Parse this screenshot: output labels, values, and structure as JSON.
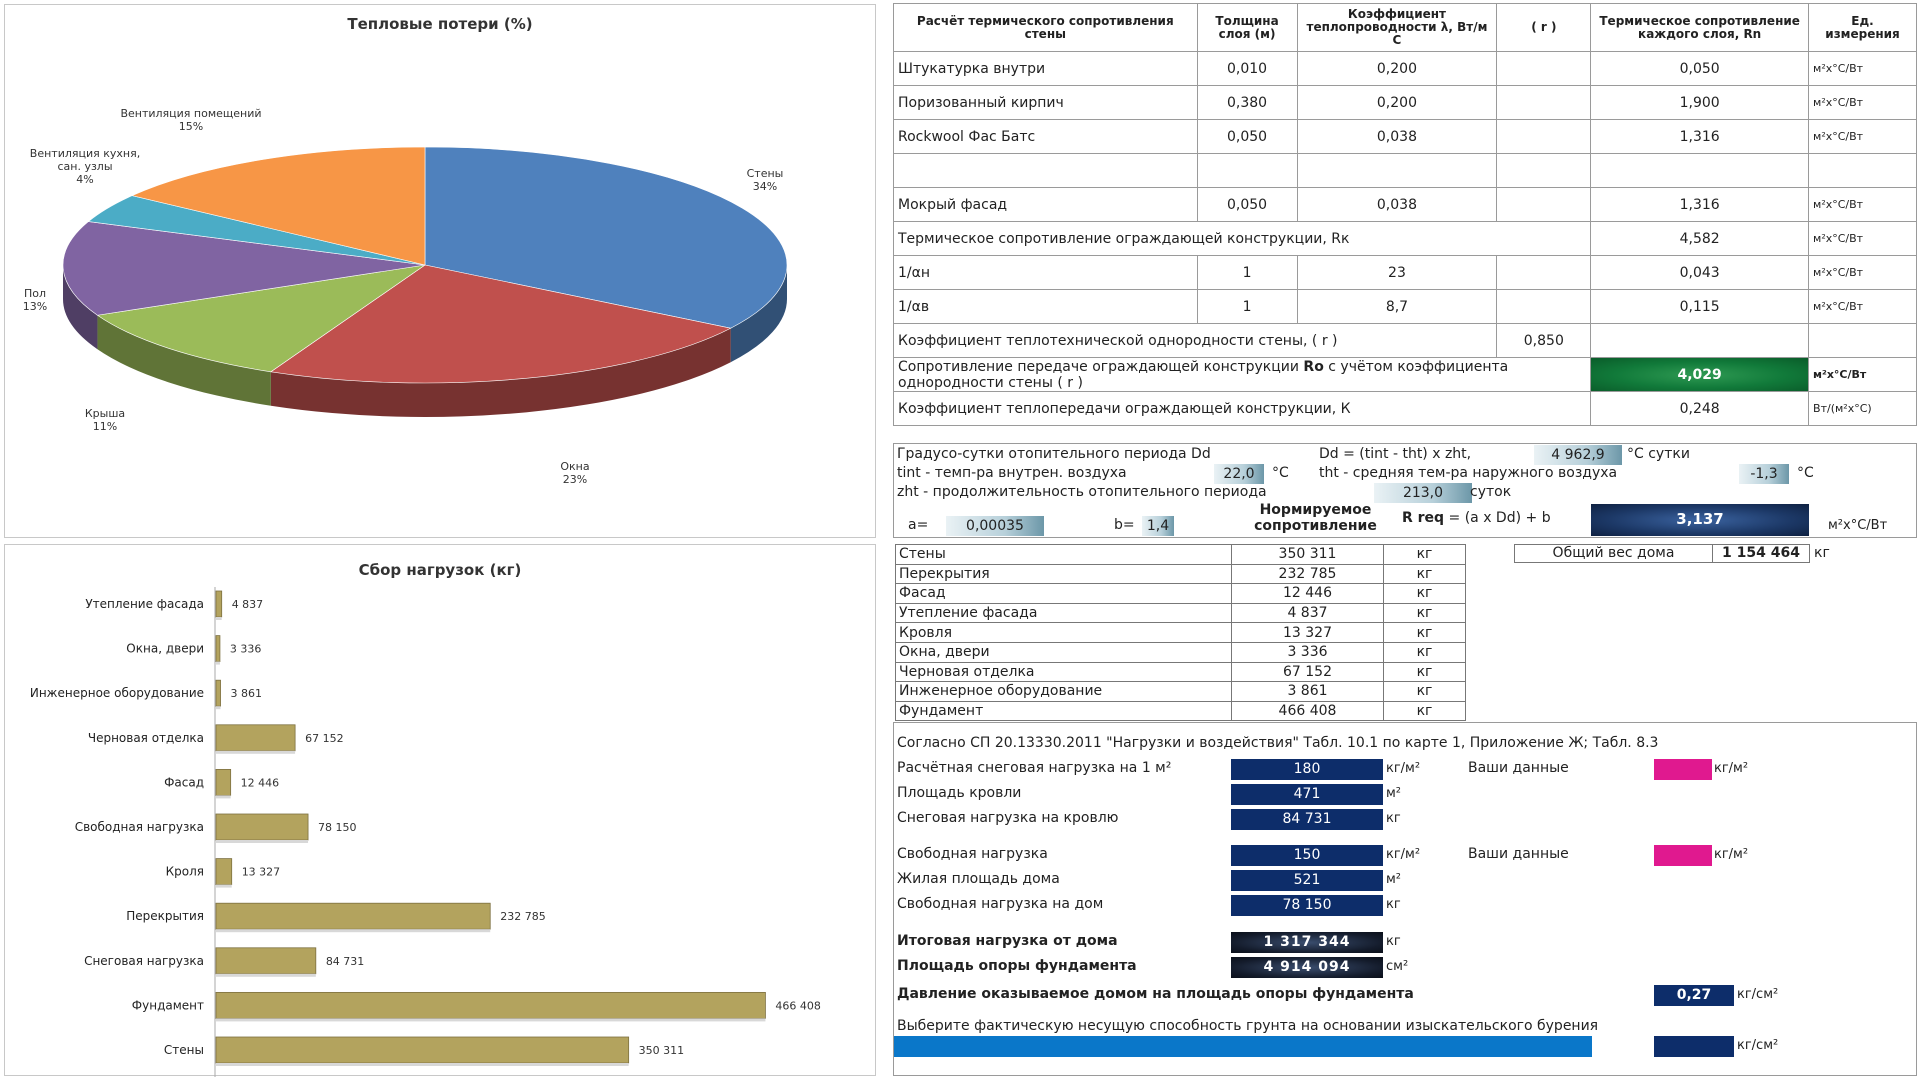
{
  "pie": {
    "title": "Тепловые потери (%)",
    "slices": [
      {
        "label": "Стены",
        "value": 34,
        "pct": "34%",
        "color": "#4f81bd"
      },
      {
        "label": "Окна",
        "value": 23,
        "pct": "23%",
        "color": "#c0504d"
      },
      {
        "label": "Крыша",
        "value": 11,
        "pct": "11%",
        "color": "#9bbb59"
      },
      {
        "label": "Пол",
        "value": 13,
        "pct": "13%",
        "color": "#8064a2"
      },
      {
        "label": "Вентиляция кухня, сан. узлы",
        "label_lines": [
          "Вентиляция кухня,",
          "сан. узлы"
        ],
        "value": 4,
        "pct": "4%",
        "color": "#4bacc6"
      },
      {
        "label": "Вентиляция помещений",
        "value": 15,
        "pct": "15%",
        "color": "#f79646"
      }
    ]
  },
  "chart_data": [
    {
      "type": "pie",
      "title": "Тепловые потери (%)",
      "categories": [
        "Стены",
        "Окна",
        "Крыша",
        "Пол",
        "Вентиляция кухня, сан. узлы",
        "Вентиляция помещений"
      ],
      "values": [
        34,
        23,
        11,
        13,
        4,
        15
      ]
    },
    {
      "type": "bar",
      "title": "Сбор нагрузок (кг)",
      "categories": [
        "Утепление фасада",
        "Окна, двери",
        "Инженерное оборудование",
        "Черновая отделка",
        "Фасад",
        "Свободная нагрузка",
        "Кроля",
        "Перекрытия",
        "Снеговая нагрузка",
        "Фундамент",
        "Стены"
      ],
      "values": [
        4837,
        3336,
        3861,
        67152,
        12446,
        78150,
        13327,
        232785,
        84731,
        466408,
        350311
      ],
      "value_labels": [
        "4 837",
        "3 336",
        "3 861",
        "67 152",
        "12 446",
        "78 150",
        "13 327",
        "232 785",
        "84 731",
        "466 408",
        "350 311"
      ],
      "xlim": [
        0,
        500000
      ],
      "bar_color": "#b3a35e"
    }
  ],
  "bar": {
    "title": "Сбор нагрузок (кг)"
  },
  "thermal": {
    "headers": [
      "Расчёт термического сопротивления стены",
      "Толщина слоя (м)",
      "Коэффициент теплопроводности λ, Вт/м С",
      "( r )",
      "Термическое сопротивление каждого слоя, Rn",
      "Ед. измерения"
    ],
    "layers": [
      {
        "name": "Штукатурка внутри",
        "thick": "0,010",
        "lambda": "0,200",
        "r": "",
        "rn": "0,050",
        "unit": "м²х°С/Вт"
      },
      {
        "name": "Поризованный кирпич",
        "thick": "0,380",
        "lambda": "0,200",
        "r": "",
        "rn": "1,900",
        "unit": "м²х°С/Вт"
      },
      {
        "name": "Rockwool Фас Батс",
        "thick": "0,050",
        "lambda": "0,038",
        "r": "",
        "rn": "1,316",
        "unit": "м²х°С/Вт"
      },
      {
        "name": "",
        "thick": "",
        "lambda": "",
        "r": "",
        "rn": "",
        "unit": ""
      },
      {
        "name": "Мокрый фасад",
        "thick": "0,050",
        "lambda": "0,038",
        "r": "",
        "rn": "1,316",
        "unit": "м²х°С/Вт"
      }
    ],
    "rk": {
      "label": "Термическое сопротивление ограждающей конструкции, Rк",
      "value": "4,582",
      "unit": "м²х°С/Вт"
    },
    "an": {
      "label": "1/αн",
      "n": "1",
      "v": "23",
      "value": "0,043",
      "unit": "м²х°С/Вт"
    },
    "av": {
      "label": "1/αв",
      "n": "1",
      "v": "8,7",
      "value": "0,115",
      "unit": "м²х°С/Вт"
    },
    "homog": {
      "label": "Коэффициент теплотехнической однородности стены, ( r )",
      "value": "0,850"
    },
    "ro": {
      "label_pre": "Сопротивление передаче ограждающей конструкции ",
      "label_bold": "Ro",
      "label_post": " с учётом коэффициента однородности стены ( r )",
      "value": "4,029",
      "unit": "м²х°С/Вт"
    },
    "k": {
      "label": "Коэффициент теплопередачи ограждающей конструкции, К",
      "value": "0,248",
      "unit": "Вт/(м²х°С)"
    }
  },
  "degree": {
    "dd_label": "Градусо-сутки отопительного периода Dd",
    "dd_formula": "Dd = (tint - tht) x zht,",
    "dd_value": "4 962,9",
    "dd_unit": "°С сутки",
    "tint_label": "tint - темп-ра внутрен. воздуха",
    "tint_value": "22,0",
    "tint_unit": "°С",
    "tht_label": "tht - средняя тем-ра наружного воздуха",
    "tht_value": "-1,3",
    "tht_unit": "°С",
    "zht_label": "zht - продолжительность отопительного периода",
    "zht_value": "213,0",
    "zht_unit": "суток",
    "a_label": "a=",
    "a_value": "0,00035",
    "b_label": "b=",
    "b_value": "1,4",
    "norm_label_1": "Нормируемое",
    "norm_label_2": "сопротивление",
    "rreq_bold": "R req",
    "rreq_formula": " = (a x Dd) + b",
    "rreq_value": "3,137",
    "rreq_unit": "м²х°С/Вт"
  },
  "loads": {
    "rows": [
      {
        "name": "Стены",
        "value": "350 311",
        "unit": "кг"
      },
      {
        "name": "Перекрытия",
        "value": "232 785",
        "unit": "кг"
      },
      {
        "name": "Фасад",
        "value": "12 446",
        "unit": "кг"
      },
      {
        "name": "Утепление фасада",
        "value": "4 837",
        "unit": "кг"
      },
      {
        "name": "Кровля",
        "value": "13 327",
        "unit": "кг"
      },
      {
        "name": "Окна, двери",
        "value": "3 336",
        "unit": "кг"
      },
      {
        "name": "Черновая отделка",
        "value": "67 152",
        "unit": "кг"
      },
      {
        "name": "Инженерное оборудование",
        "value": "3 861",
        "unit": "кг"
      },
      {
        "name": "Фундамент",
        "value": "466 408",
        "unit": "кг"
      }
    ],
    "total_label": "Общий вес дома",
    "total_value": "1 154 464",
    "total_unit": "кг"
  },
  "snow": {
    "ref": "Согласно СП 20.13330.2011 \"Нагрузки и воздействия\"  Табл. 10.1 по карте 1, Приложение Ж; Табл. 8.3",
    "snow_label": "Расчётная снеговая нагрузка на 1 м²",
    "snow_value": "180",
    "snow_unit": "кг/м²",
    "your_data": "Ваши данные",
    "your_unit": "кг/м²",
    "roof_area_label": "Площадь кровли",
    "roof_area_value": "471",
    "roof_area_unit": "м²",
    "roof_load_label": "Снеговая нагрузка на кровлю",
    "roof_load_value": "84 731",
    "roof_load_unit": "кг",
    "free_label": "Свободная нагрузка",
    "free_value": "150",
    "free_unit": "кг/м²",
    "your_data2": "Ваши данные",
    "your_unit2": "кг/м²",
    "living_label": "Жилая площадь дома",
    "living_value": "521",
    "living_unit": "м²",
    "free_house_label": "Свободная нагрузка на дом",
    "free_house_value": "78 150",
    "free_house_unit": "кг",
    "total_load_label": "Итоговая нагрузка от дома",
    "total_load_value": "1 317 344",
    "total_load_unit": "кг",
    "found_area_label": "Площадь опоры фундамента",
    "found_area_value": "4 914 094",
    "found_area_unit": "см²",
    "pressure_label": "Давление оказываемое домом на площадь опоры фундамента",
    "pressure_value": "0,27",
    "pressure_unit": "кг/см²",
    "soil_label": "Выберите фактическую несущую способность грунта на основании изыскательского бурения",
    "soil_unit": "кг/см²",
    "soil_bar_color": "#0a77c9"
  }
}
